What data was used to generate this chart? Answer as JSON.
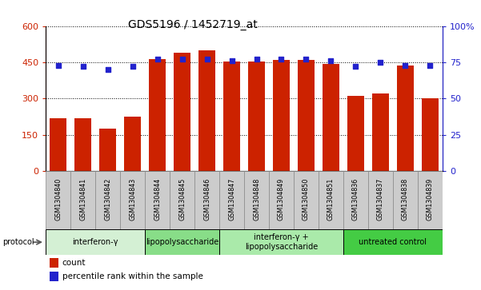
{
  "title": "GDS5196 / 1452719_at",
  "samples": [
    "GSM1304840",
    "GSM1304841",
    "GSM1304842",
    "GSM1304843",
    "GSM1304844",
    "GSM1304845",
    "GSM1304846",
    "GSM1304847",
    "GSM1304848",
    "GSM1304849",
    "GSM1304850",
    "GSM1304851",
    "GSM1304836",
    "GSM1304837",
    "GSM1304838",
    "GSM1304839"
  ],
  "counts": [
    220,
    220,
    175,
    225,
    465,
    490,
    500,
    455,
    455,
    460,
    460,
    445,
    310,
    320,
    438,
    300
  ],
  "percentile_ranks": [
    73,
    72,
    70,
    72,
    77,
    77,
    77,
    76,
    77,
    77,
    77,
    76,
    72,
    75,
    73,
    73
  ],
  "groups": [
    {
      "label": "interferon-γ",
      "start": 0,
      "end": 4,
      "color": "#d4f0d4"
    },
    {
      "label": "lipopolysaccharide",
      "start": 4,
      "end": 7,
      "color": "#88dd88"
    },
    {
      "label": "interferon-γ +\nlipopolysaccharide",
      "start": 7,
      "end": 12,
      "color": "#aaeaaa"
    },
    {
      "label": "untreated control",
      "start": 12,
      "end": 16,
      "color": "#44cc44"
    }
  ],
  "ylim_left": [
    0,
    600
  ],
  "ylim_right": [
    0,
    100
  ],
  "yticks_left": [
    0,
    150,
    300,
    450,
    600
  ],
  "yticks_right": [
    0,
    25,
    50,
    75,
    100
  ],
  "bar_color": "#cc2200",
  "dot_color": "#2222cc",
  "grid_color": "#000000",
  "bg_color": "#ffffff",
  "tick_label_color_left": "#cc2200",
  "tick_label_color_right": "#2222cc",
  "sample_box_color": "#cccccc",
  "sample_box_edge": "#888888"
}
